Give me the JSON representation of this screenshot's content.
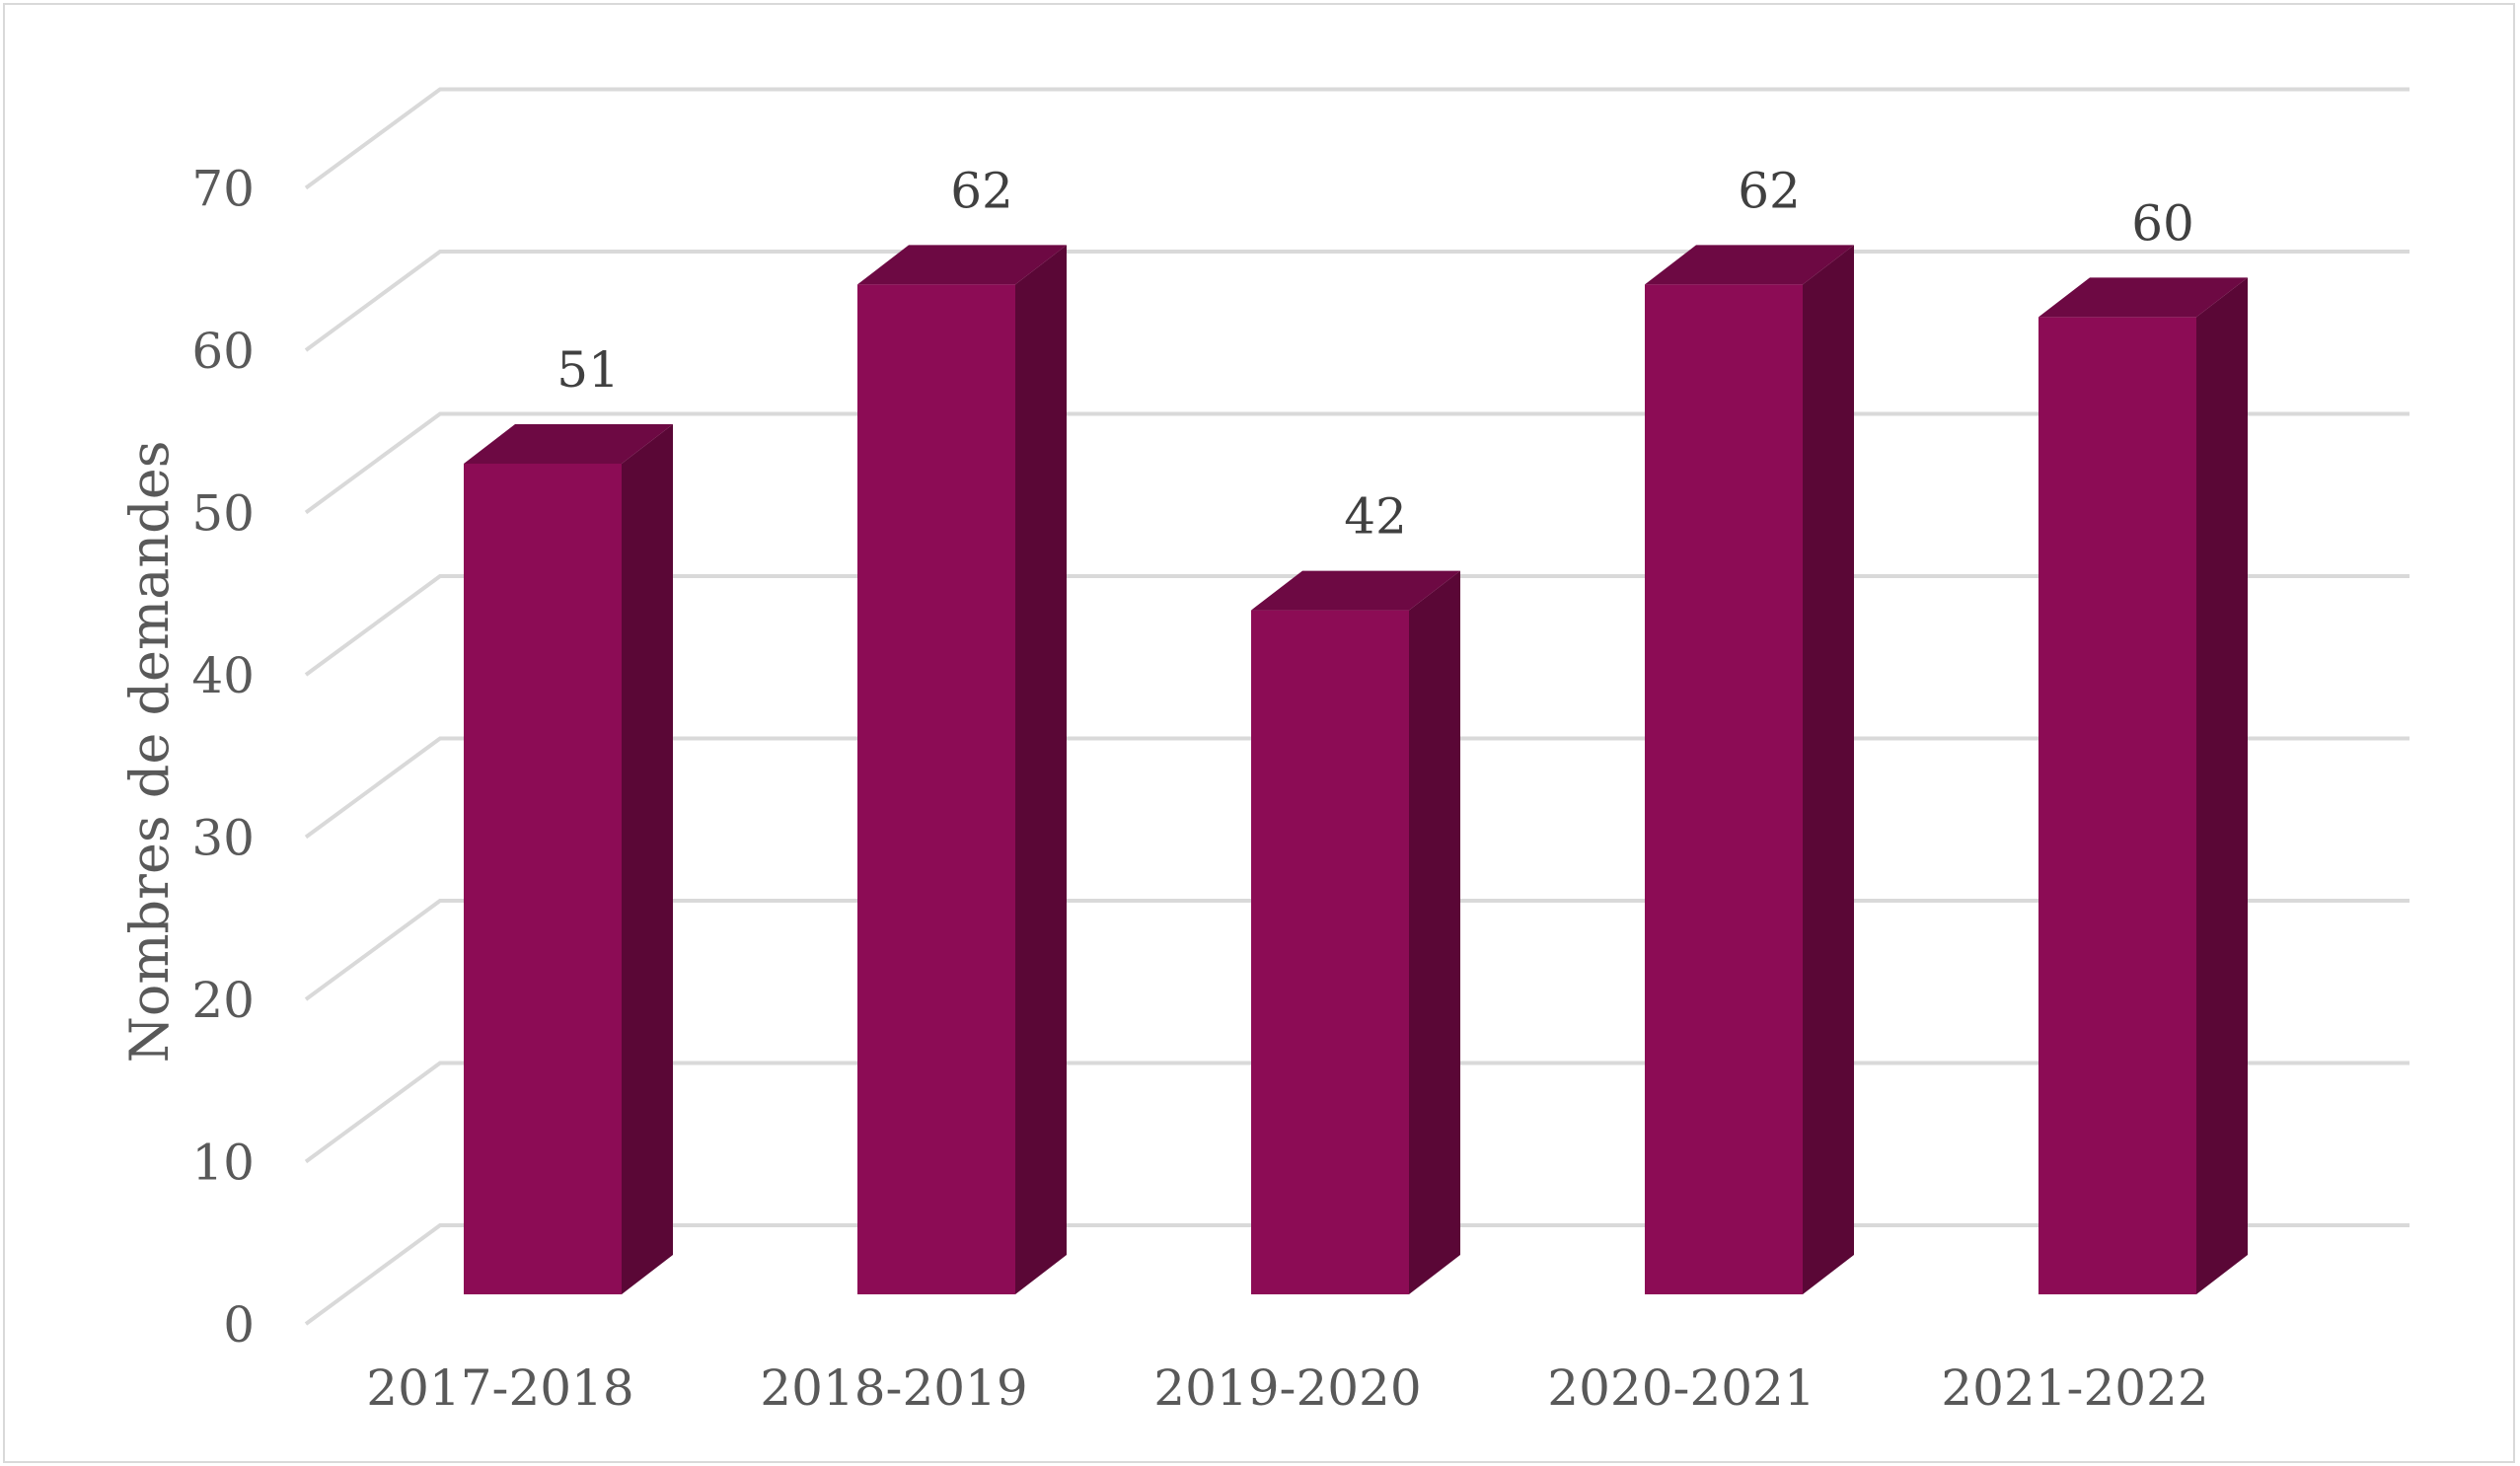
{
  "chart_data": {
    "type": "bar",
    "style": "3d-column",
    "categories": [
      "2017-2018",
      "2018-2019",
      "2019-2020",
      "2020-2021",
      "2021-2022"
    ],
    "series": [
      {
        "values": [
          51,
          62,
          42,
          62,
          60
        ]
      }
    ],
    "data_labels": [
      "51",
      "62",
      "42",
      "62",
      "60"
    ],
    "y_ticks": [
      "0",
      "10",
      "20",
      "30",
      "40",
      "50",
      "60",
      "70"
    ],
    "title": "",
    "xlabel": "",
    "ylabel": "Nombres de demandes",
    "ylim": [
      0,
      70
    ],
    "grid": true,
    "legend": "none",
    "colors": {
      "bar_front": "#8c0c55",
      "bar_side": "#5a0736",
      "bar_top": "#6d0943",
      "gridline": "#d9d9d9",
      "text": "#595959"
    }
  }
}
